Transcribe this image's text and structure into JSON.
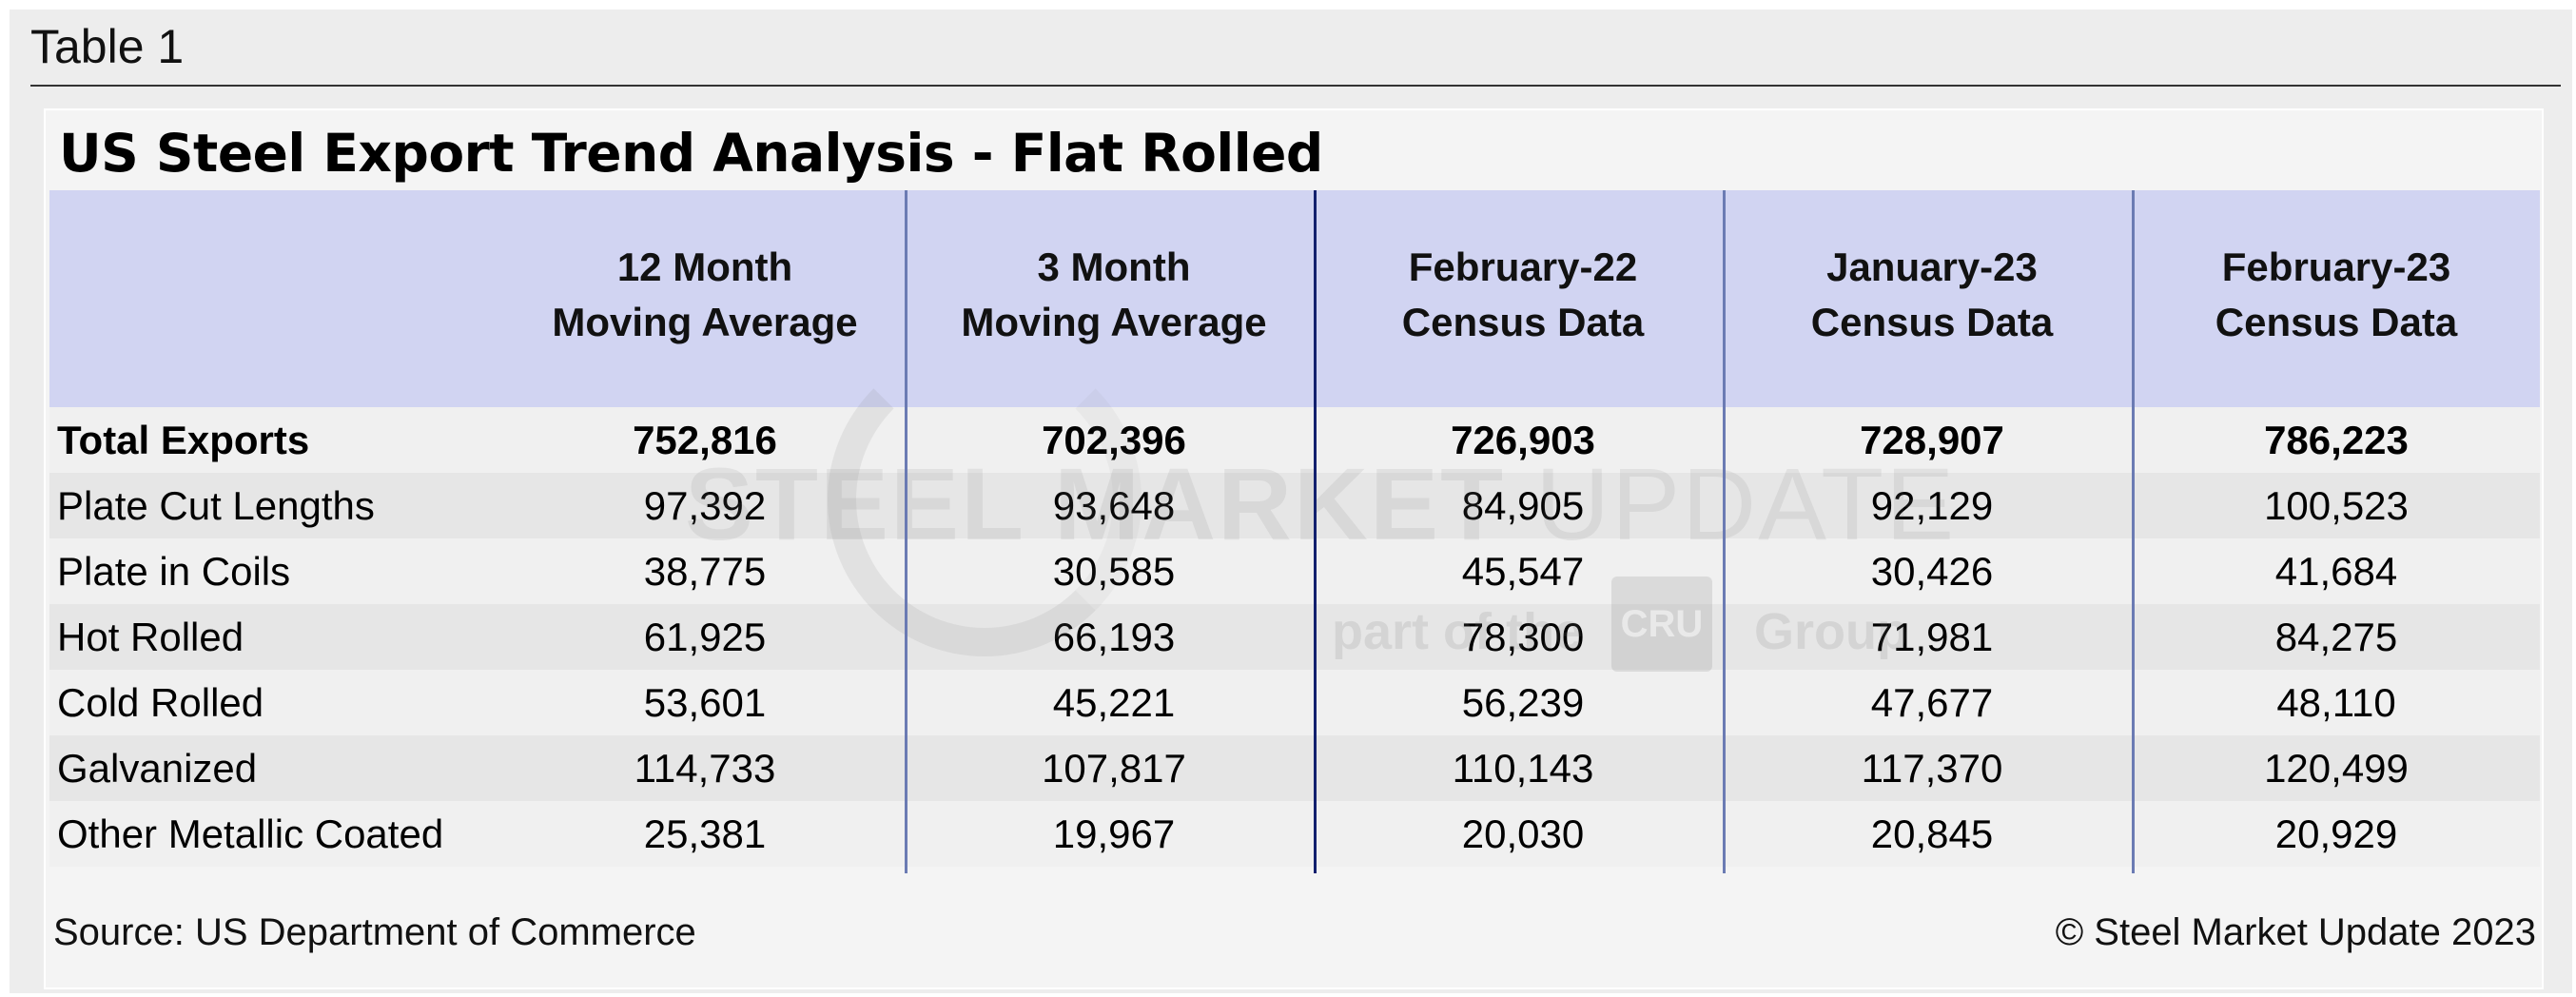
{
  "table_label": "Table 1",
  "title": "US Steel Export Trend Analysis - Flat Rolled",
  "columns": [
    {
      "line1": "12 Month",
      "line2": "Moving Average"
    },
    {
      "line1": "3 Month",
      "line2": "Moving Average"
    },
    {
      "line1": "February-22",
      "line2": "Census Data"
    },
    {
      "line1": "January-23",
      "line2": "Census Data"
    },
    {
      "line1": "February-23",
      "line2": "Census Data"
    }
  ],
  "rows": [
    {
      "label": "Total Exports",
      "values": [
        "752,816",
        "702,396",
        "726,903",
        "728,907",
        "786,223"
      ]
    },
    {
      "label": "Plate Cut Lengths",
      "values": [
        "97,392",
        "93,648",
        "84,905",
        "92,129",
        "100,523"
      ]
    },
    {
      "label": "Plate in Coils",
      "values": [
        "38,775",
        "30,585",
        "45,547",
        "30,426",
        "41,684"
      ]
    },
    {
      "label": "Hot Rolled",
      "values": [
        "61,925",
        "66,193",
        "78,300",
        "71,981",
        "84,275"
      ]
    },
    {
      "label": "Cold Rolled",
      "values": [
        "53,601",
        "45,221",
        "56,239",
        "47,677",
        "48,110"
      ]
    },
    {
      "label": "Galvanized",
      "values": [
        "114,733",
        "107,817",
        "110,143",
        "117,370",
        "120,499"
      ]
    },
    {
      "label": "Other Metallic Coated",
      "values": [
        "25,381",
        "19,967",
        "20,030",
        "20,845",
        "20,929"
      ]
    }
  ],
  "footer": {
    "source": "Source: US Department of Commerce",
    "copyright": "© Steel Market Update 2023"
  },
  "watermark": {
    "brand": "STEEL MARKET",
    "brand_light": "UPDATE",
    "sub_left": "part of the",
    "logo": "CRU",
    "sub_right": "Group"
  },
  "colors": {
    "header_band": "#d1d4f2",
    "divider_light": "#6b7bb3",
    "divider_dark": "#12206e"
  }
}
